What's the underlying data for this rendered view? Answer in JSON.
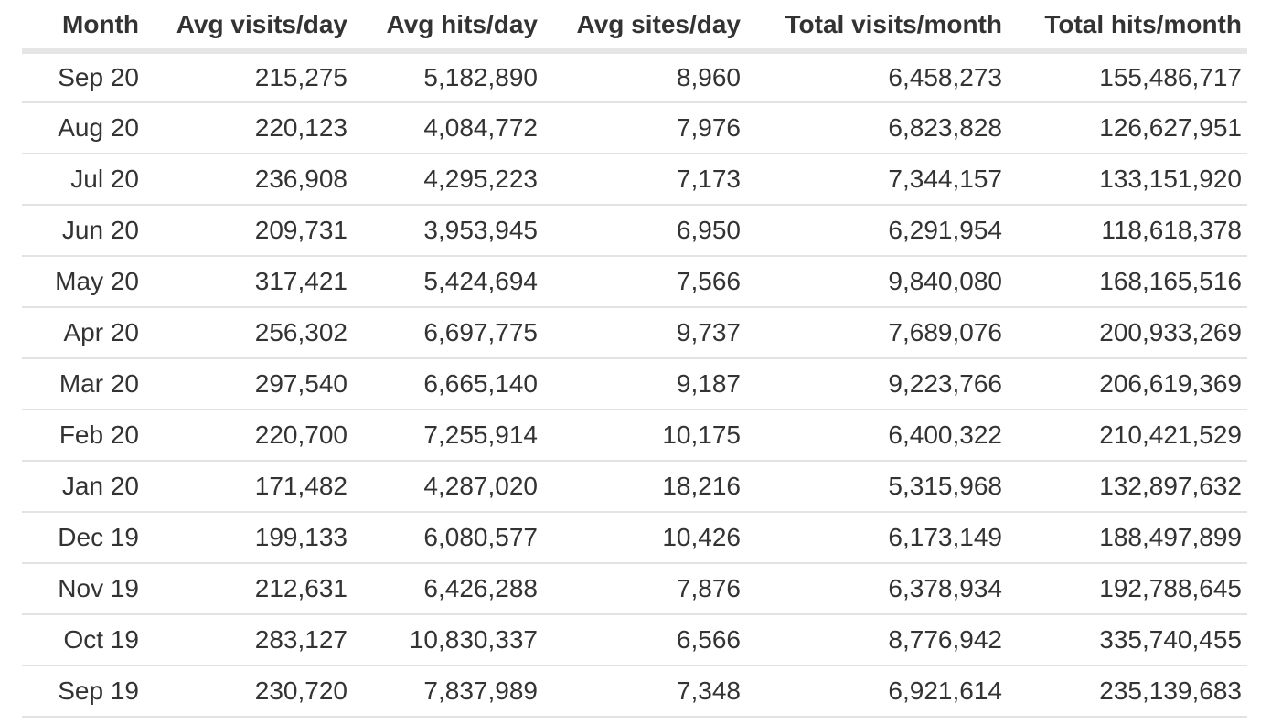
{
  "table": {
    "headers": [
      "Month",
      "Avg visits/day",
      "Avg hits/day",
      "Avg sites/day",
      "Total visits/month",
      "Total hits/month"
    ],
    "rows": [
      [
        "Sep 20",
        "215,275",
        "5,182,890",
        "8,960",
        "6,458,273",
        "155,486,717"
      ],
      [
        "Aug 20",
        "220,123",
        "4,084,772",
        "7,976",
        "6,823,828",
        "126,627,951"
      ],
      [
        "Jul 20",
        "236,908",
        "4,295,223",
        "7,173",
        "7,344,157",
        "133,151,920"
      ],
      [
        "Jun 20",
        "209,731",
        "3,953,945",
        "6,950",
        "6,291,954",
        "118,618,378"
      ],
      [
        "May 20",
        "317,421",
        "5,424,694",
        "7,566",
        "9,840,080",
        "168,165,516"
      ],
      [
        "Apr 20",
        "256,302",
        "6,697,775",
        "9,737",
        "7,689,076",
        "200,933,269"
      ],
      [
        "Mar 20",
        "297,540",
        "6,665,140",
        "9,187",
        "9,223,766",
        "206,619,369"
      ],
      [
        "Feb 20",
        "220,700",
        "7,255,914",
        "10,175",
        "6,400,322",
        "210,421,529"
      ],
      [
        "Jan 20",
        "171,482",
        "4,287,020",
        "18,216",
        "5,315,968",
        "132,897,632"
      ],
      [
        "Dec 19",
        "199,133",
        "6,080,577",
        "10,426",
        "6,173,149",
        "188,497,899"
      ],
      [
        "Nov 19",
        "212,631",
        "6,426,288",
        "7,876",
        "6,378,934",
        "192,788,645"
      ],
      [
        "Oct 19",
        "283,127",
        "10,830,337",
        "6,566",
        "8,776,942",
        "335,740,455"
      ],
      [
        "Sep 19",
        "230,720",
        "7,837,989",
        "7,348",
        "6,921,614",
        "235,139,683"
      ]
    ]
  },
  "colors": {
    "text": "#333333",
    "header_rule": "#e6e6e6",
    "row_rule": "#e3e3e3"
  }
}
